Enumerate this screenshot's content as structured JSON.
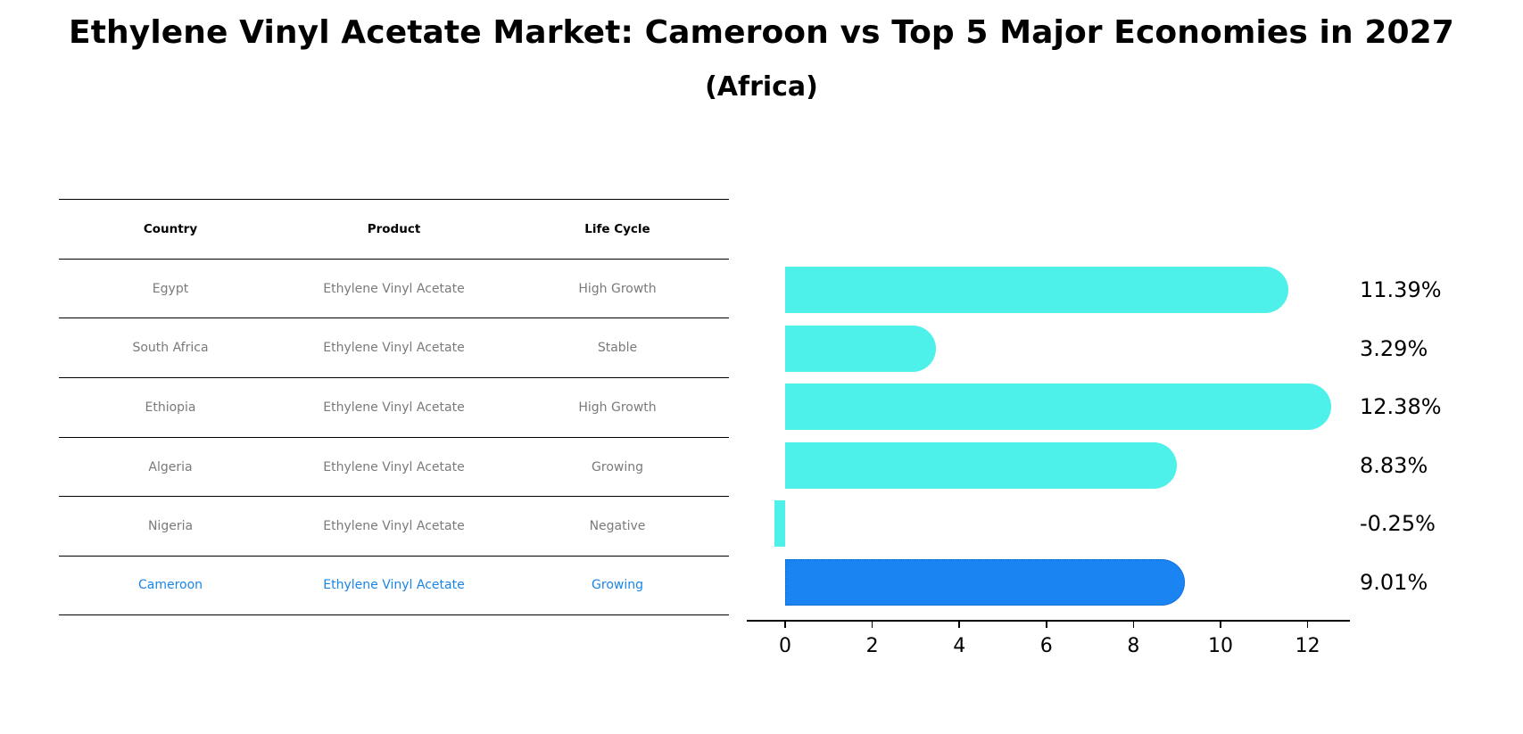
{
  "title": "Ethylene Vinyl Acetate Market: Cameroon vs Top 5 Major Economies in 2027",
  "subtitle": "(Africa)",
  "colors": {
    "bar": "#4ef0ea",
    "highlight_bar": "#1a85f2",
    "highlight_text": "#1a85e8",
    "muted_text": "#7a7a7a"
  },
  "table": {
    "headers": [
      "Country",
      "Product",
      "Life Cycle"
    ],
    "rows": [
      {
        "country": "Egypt",
        "product": "Ethylene Vinyl Acetate",
        "life_cycle": "High Growth"
      },
      {
        "country": "South Africa",
        "product": "Ethylene Vinyl Acetate",
        "life_cycle": "Stable"
      },
      {
        "country": "Ethiopia",
        "product": "Ethylene Vinyl Acetate",
        "life_cycle": "High Growth"
      },
      {
        "country": "Algeria",
        "product": "Ethylene Vinyl Acetate",
        "life_cycle": "Growing"
      },
      {
        "country": "Nigeria",
        "product": "Ethylene Vinyl Acetate",
        "life_cycle": "Negative"
      },
      {
        "country": "Cameroon",
        "product": "Ethylene Vinyl Acetate",
        "life_cycle": "Growing"
      }
    ]
  },
  "chart_data": {
    "type": "bar",
    "orientation": "horizontal",
    "title": "Ethylene Vinyl Acetate Market: Cameroon vs Top 5 Major Economies in 2027",
    "subtitle": "(Africa)",
    "categories": [
      "Egypt",
      "South Africa",
      "Ethiopia",
      "Algeria",
      "Nigeria",
      "Cameroon"
    ],
    "values": [
      11.39,
      3.29,
      12.38,
      8.83,
      -0.25,
      9.01
    ],
    "value_labels": [
      "11.39%",
      "3.29%",
      "12.38%",
      "8.83%",
      "-0.25%",
      "9.01%"
    ],
    "highlight": "Cameroon",
    "xlabel": "",
    "ylabel": "",
    "xticks": [
      "0",
      "2",
      "4",
      "6",
      "8",
      "10",
      "12"
    ],
    "xlim": [
      -0.9,
      13
    ],
    "grid": false,
    "legend": null
  }
}
